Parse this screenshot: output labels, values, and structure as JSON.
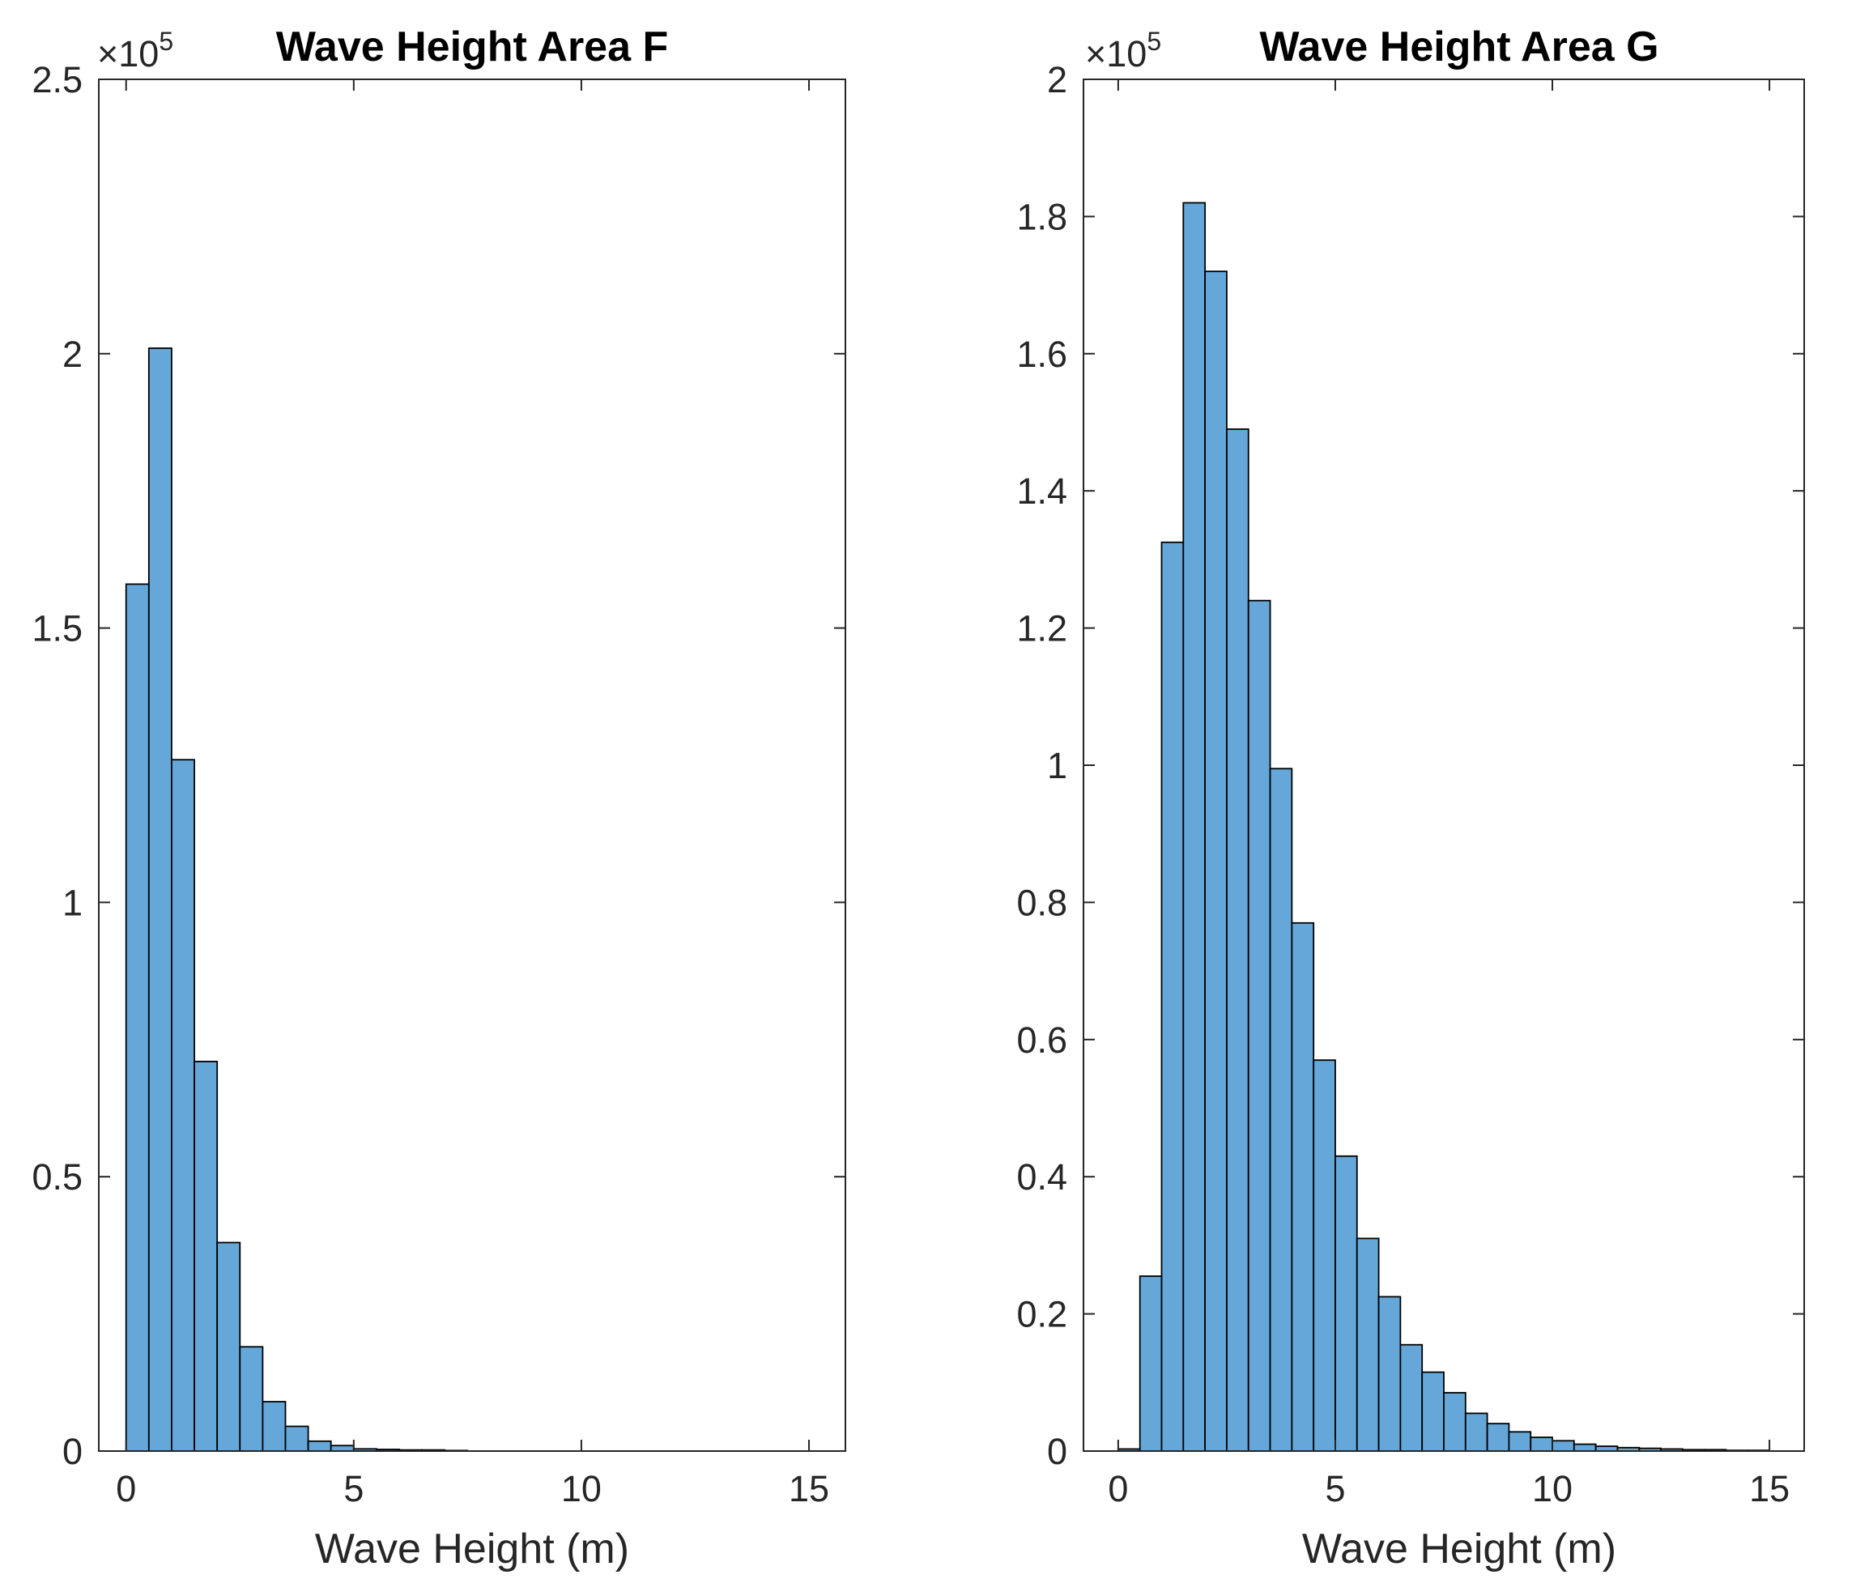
{
  "chart_data": [
    {
      "type": "bar",
      "title": "Wave Height Area F",
      "xlabel": "Wave Height (m)",
      "ylabel": "",
      "xlim": [
        -0.6,
        15.8
      ],
      "ylim": [
        0,
        2.5
      ],
      "x_ticks": [
        "0",
        "5",
        "10",
        "15"
      ],
      "x_tick_values": [
        0,
        5,
        10,
        15
      ],
      "y_ticks": [
        "0",
        "0.5",
        "1",
        "1.5",
        "2",
        "2.5"
      ],
      "y_tick_values": [
        0,
        0.5,
        1,
        1.5,
        2,
        2.5
      ],
      "y_multiplier_base": "×10",
      "y_multiplier_exp": "5",
      "bin_width": 0.5,
      "bin_edges": [
        0,
        0.5,
        1,
        1.5,
        2,
        2.5,
        3,
        3.5,
        4,
        4.5,
        5,
        5.5,
        6,
        6.5,
        7,
        7.5
      ],
      "values": [
        1.58,
        2.01,
        1.26,
        0.71,
        0.38,
        0.19,
        0.09,
        0.045,
        0.018,
        0.01,
        0.004,
        0.003,
        0.002,
        0.002,
        0.001
      ],
      "bar_color": "#64a7d8",
      "edge_color": "#000000"
    },
    {
      "type": "bar",
      "title": "Wave Height Area G",
      "xlabel": "Wave Height (m)",
      "ylabel": "",
      "xlim": [
        -0.8,
        15.8
      ],
      "ylim": [
        0,
        2
      ],
      "x_ticks": [
        "0",
        "5",
        "10",
        "15"
      ],
      "x_tick_values": [
        0,
        5,
        10,
        15
      ],
      "y_ticks": [
        "0",
        "0.2",
        "0.4",
        "0.6",
        "0.8",
        "1",
        "1.2",
        "1.4",
        "1.6",
        "1.8",
        "2"
      ],
      "y_tick_values": [
        0,
        0.2,
        0.4,
        0.6,
        0.8,
        1,
        1.2,
        1.4,
        1.6,
        1.8,
        2
      ],
      "y_multiplier_base": "×10",
      "y_multiplier_exp": "5",
      "bin_width": 0.5,
      "bin_edges": [
        0,
        0.5,
        1,
        1.5,
        2,
        2.5,
        3,
        3.5,
        4,
        4.5,
        5,
        5.5,
        6,
        6.5,
        7,
        7.5,
        8,
        8.5,
        9,
        9.5,
        10,
        10.5,
        11,
        11.5,
        12,
        12.5,
        13,
        13.5,
        14,
        14.5,
        15
      ],
      "values": [
        0.003,
        0.255,
        1.325,
        1.82,
        1.72,
        1.49,
        1.24,
        0.995,
        0.77,
        0.57,
        0.43,
        0.31,
        0.225,
        0.155,
        0.115,
        0.085,
        0.055,
        0.04,
        0.028,
        0.02,
        0.015,
        0.01,
        0.007,
        0.005,
        0.004,
        0.003,
        0.002,
        0.002,
        0.001,
        0.001
      ],
      "bar_color": "#64a7d8",
      "edge_color": "#000000"
    }
  ]
}
